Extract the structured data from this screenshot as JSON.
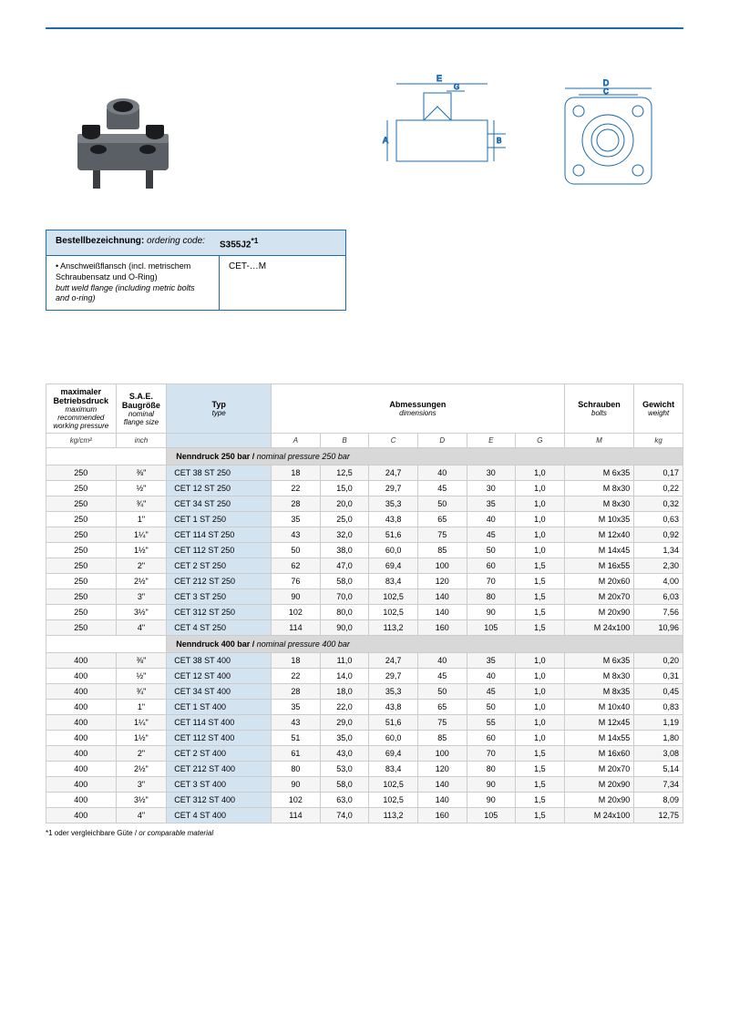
{
  "order_box": {
    "label_de": "Bestellbezeichnung:",
    "label_en": "ordering code:",
    "value": "S355J2",
    "sup": "*1",
    "desc_de": "• Anschweißflansch (incl. metrischem Schraubensatz und O-Ring)",
    "desc_en": "butt weld flange (including metric bolts and o-ring)",
    "code": "CET-…M"
  },
  "table": {
    "headers": {
      "press_de": "maximaler Betriebsdruck",
      "press_en": "maximum recommended working pressure",
      "sae_de": "S.A.E. Baugröße",
      "sae_en": "nominal flange size",
      "typ_de": "Typ",
      "typ_en": "type",
      "dim_de": "Abmessungen",
      "dim_en": "dimensions",
      "bolt_de": "Schrauben",
      "bolt_en": "bolts",
      "wt_de": "Gewicht",
      "wt_en": "weight"
    },
    "units": {
      "press": "kg/cm²",
      "sae": "inch",
      "a": "A",
      "b": "B",
      "c": "C",
      "d": "D",
      "e": "E",
      "g": "G",
      "m": "M",
      "kg": "kg"
    },
    "section1_de": "Nenndruck 250 bar / ",
    "section1_en": "nominal pressure 250 bar",
    "section2_de": "Nenndruck 400 bar / ",
    "section2_en": "nominal pressure 400 bar",
    "rows250": [
      {
        "p": "250",
        "s": "⅜\"",
        "t": "CET 38 ST 250",
        "a": "18",
        "b": "12,5",
        "c": "24,7",
        "d": "40",
        "e": "30",
        "g": "1,0",
        "m": "M  6x35",
        "w": "0,17"
      },
      {
        "p": "250",
        "s": "½\"",
        "t": "CET 12 ST 250",
        "a": "22",
        "b": "15,0",
        "c": "29,7",
        "d": "45",
        "e": "30",
        "g": "1,0",
        "m": "M  8x30",
        "w": "0,22"
      },
      {
        "p": "250",
        "s": "¾\"",
        "t": "CET 34 ST 250",
        "a": "28",
        "b": "20,0",
        "c": "35,3",
        "d": "50",
        "e": "35",
        "g": "1,0",
        "m": "M  8x30",
        "w": "0,32"
      },
      {
        "p": "250",
        "s": "1\"",
        "t": "CET 1 ST 250",
        "a": "35",
        "b": "25,0",
        "c": "43,8",
        "d": "65",
        "e": "40",
        "g": "1,0",
        "m": "M 10x35",
        "w": "0,63"
      },
      {
        "p": "250",
        "s": "1¼\"",
        "t": "CET 114 ST 250",
        "a": "43",
        "b": "32,0",
        "c": "51,6",
        "d": "75",
        "e": "45",
        "g": "1,0",
        "m": "M 12x40",
        "w": "0,92"
      },
      {
        "p": "250",
        "s": "1½\"",
        "t": "CET 112 ST 250",
        "a": "50",
        "b": "38,0",
        "c": "60,0",
        "d": "85",
        "e": "50",
        "g": "1,0",
        "m": "M 14x45",
        "w": "1,34"
      },
      {
        "p": "250",
        "s": "2\"",
        "t": "CET 2 ST 250",
        "a": "62",
        "b": "47,0",
        "c": "69,4",
        "d": "100",
        "e": "60",
        "g": "1,5",
        "m": "M 16x55",
        "w": "2,30"
      },
      {
        "p": "250",
        "s": "2½\"",
        "t": "CET 212 ST 250",
        "a": "76",
        "b": "58,0",
        "c": "83,4",
        "d": "120",
        "e": "70",
        "g": "1,5",
        "m": "M 20x60",
        "w": "4,00"
      },
      {
        "p": "250",
        "s": "3\"",
        "t": "CET 3 ST 250",
        "a": "90",
        "b": "70,0",
        "c": "102,5",
        "d": "140",
        "e": "80",
        "g": "1,5",
        "m": "M 20x70",
        "w": "6,03"
      },
      {
        "p": "250",
        "s": "3½\"",
        "t": "CET 312 ST 250",
        "a": "102",
        "b": "80,0",
        "c": "102,5",
        "d": "140",
        "e": "90",
        "g": "1,5",
        "m": "M 20x90",
        "w": "7,56"
      },
      {
        "p": "250",
        "s": "4\"",
        "t": "CET 4 ST 250",
        "a": "114",
        "b": "90,0",
        "c": "113,2",
        "d": "160",
        "e": "105",
        "g": "1,5",
        "m": "M 24x100",
        "w": "10,96"
      }
    ],
    "rows400": [
      {
        "p": "400",
        "s": "⅜\"",
        "t": "CET 38 ST 400",
        "a": "18",
        "b": "11,0",
        "c": "24,7",
        "d": "40",
        "e": "35",
        "g": "1,0",
        "m": "M  6x35",
        "w": "0,20"
      },
      {
        "p": "400",
        "s": "½\"",
        "t": "CET 12 ST 400",
        "a": "22",
        "b": "14,0",
        "c": "29,7",
        "d": "45",
        "e": "40",
        "g": "1,0",
        "m": "M  8x30",
        "w": "0,31"
      },
      {
        "p": "400",
        "s": "¾\"",
        "t": "CET 34 ST 400",
        "a": "28",
        "b": "18,0",
        "c": "35,3",
        "d": "50",
        "e": "45",
        "g": "1,0",
        "m": "M  8x35",
        "w": "0,45"
      },
      {
        "p": "400",
        "s": "1\"",
        "t": "CET 1 ST 400",
        "a": "35",
        "b": "22,0",
        "c": "43,8",
        "d": "65",
        "e": "50",
        "g": "1,0",
        "m": "M 10x40",
        "w": "0,83"
      },
      {
        "p": "400",
        "s": "1¼\"",
        "t": "CET 114 ST 400",
        "a": "43",
        "b": "29,0",
        "c": "51,6",
        "d": "75",
        "e": "55",
        "g": "1,0",
        "m": "M 12x45",
        "w": "1,19"
      },
      {
        "p": "400",
        "s": "1½\"",
        "t": "CET 112 ST 400",
        "a": "51",
        "b": "35,0",
        "c": "60,0",
        "d": "85",
        "e": "60",
        "g": "1,0",
        "m": "M 14x55",
        "w": "1,80"
      },
      {
        "p": "400",
        "s": "2\"",
        "t": "CET 2 ST 400",
        "a": "61",
        "b": "43,0",
        "c": "69,4",
        "d": "100",
        "e": "70",
        "g": "1,5",
        "m": "M 16x60",
        "w": "3,08"
      },
      {
        "p": "400",
        "s": "2½\"",
        "t": "CET 212 ST 400",
        "a": "80",
        "b": "53,0",
        "c": "83,4",
        "d": "120",
        "e": "80",
        "g": "1,5",
        "m": "M 20x70",
        "w": "5,14"
      },
      {
        "p": "400",
        "s": "3\"",
        "t": "CET 3 ST 400",
        "a": "90",
        "b": "58,0",
        "c": "102,5",
        "d": "140",
        "e": "90",
        "g": "1,5",
        "m": "M 20x90",
        "w": "7,34"
      },
      {
        "p": "400",
        "s": "3½\"",
        "t": "CET 312 ST 400",
        "a": "102",
        "b": "63,0",
        "c": "102,5",
        "d": "140",
        "e": "90",
        "g": "1,5",
        "m": "M 20x90",
        "w": "8,09"
      },
      {
        "p": "400",
        "s": "4\"",
        "t": "CET 4 ST 400",
        "a": "114",
        "b": "74,0",
        "c": "113,2",
        "d": "160",
        "e": "105",
        "g": "1,5",
        "m": "M 24x100",
        "w": "12,75"
      }
    ]
  },
  "footnote": {
    "de": "*1  oder vergleichbare Güte / ",
    "en": "or comparable material"
  },
  "colors": {
    "brand": "#1a6bb0",
    "box_bg": "#d4e3f0",
    "section_bg": "#d8d8d8"
  }
}
